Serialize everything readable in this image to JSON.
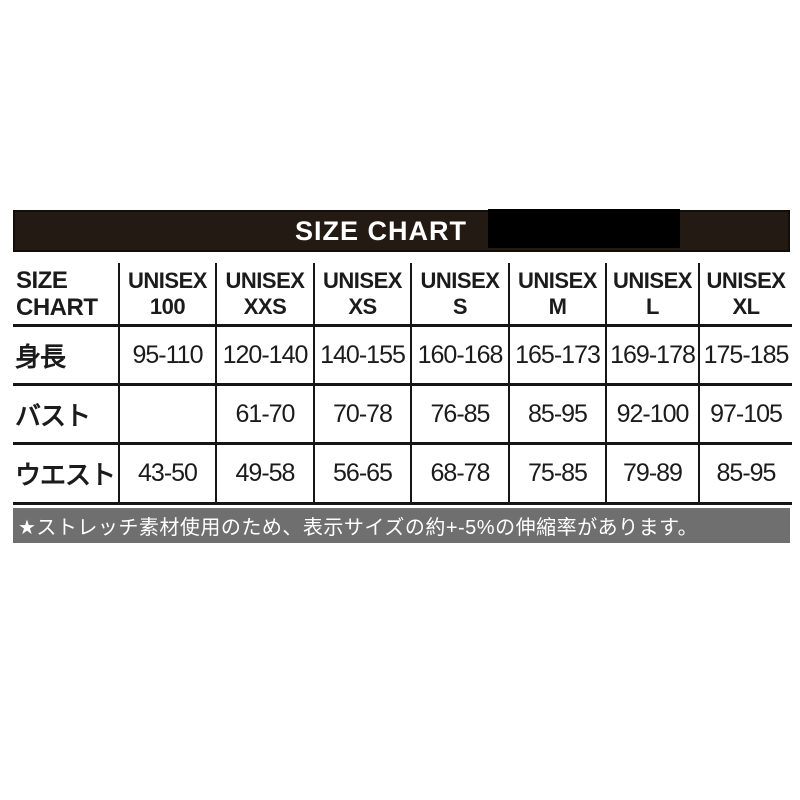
{
  "banner": {
    "title": "SIZE CHART"
  },
  "table": {
    "corner": {
      "line1": "SIZE",
      "line2": "CHART"
    },
    "columns": [
      {
        "line1": "UNISEX",
        "line2": "100"
      },
      {
        "line1": "UNISEX",
        "line2": "XXS"
      },
      {
        "line1": "UNISEX",
        "line2": "XS"
      },
      {
        "line1": "UNISEX",
        "line2": "S"
      },
      {
        "line1": "UNISEX",
        "line2": "M"
      },
      {
        "line1": "UNISEX",
        "line2": "L"
      },
      {
        "line1": "UNISEX",
        "line2": "XL"
      }
    ],
    "rows": [
      {
        "label": "身長",
        "values": [
          "95-110",
          "120-140",
          "140-155",
          "160-168",
          "165-173",
          "169-178",
          "175-185"
        ]
      },
      {
        "label": "バスト",
        "values": [
          "",
          "61-70",
          "70-78",
          "76-85",
          "85-95",
          "92-100",
          "97-105"
        ]
      },
      {
        "label": "ウエスト",
        "values": [
          "43-50",
          "49-58",
          "56-65",
          "68-78",
          "75-85",
          "79-89",
          "85-95"
        ]
      }
    ]
  },
  "footnote": {
    "text": "★ストレッチ素材使用のため、表示サイズの約+-5%の伸縮率があります。"
  },
  "colors": {
    "banner_bg": "#241a14",
    "banner_text": "#ffffff",
    "redaction": "#000000",
    "grid_line": "#161616",
    "footnote_bg": "#6f6f6f",
    "footnote_text": "#ffffff"
  }
}
